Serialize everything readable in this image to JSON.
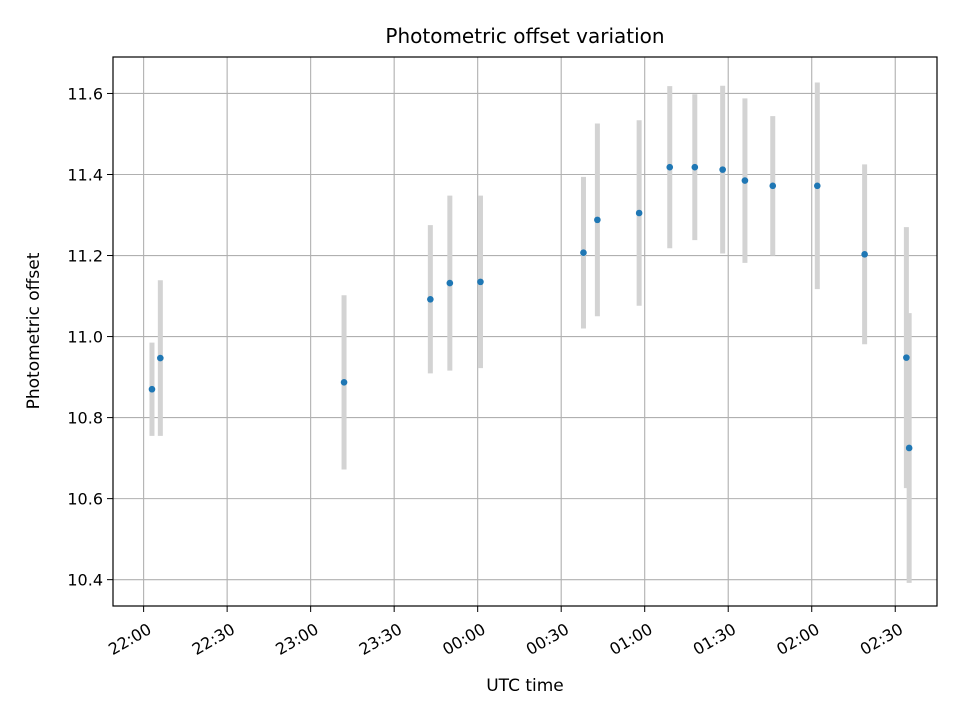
{
  "chart_data": {
    "type": "scatter",
    "title": "Photometric offset variation",
    "xlabel": "UTC time",
    "ylabel": "Photometric offset",
    "x_ticks": [
      "22:00",
      "22:30",
      "23:00",
      "23:30",
      "00:00",
      "00:30",
      "01:00",
      "01:30",
      "02:00",
      "02:30"
    ],
    "y_ticks": [
      "10.4",
      "10.6",
      "10.8",
      "11.0",
      "11.2",
      "11.4",
      "11.6"
    ],
    "x_range": [
      "21:49",
      "02:45"
    ],
    "ylim": [
      10.335,
      11.69
    ],
    "grid": true,
    "colors": {
      "point": "#1f77b4",
      "errorbar": "#d3d3d3"
    },
    "points": [
      {
        "x": "22:03",
        "y": 10.87,
        "err": 0.115
      },
      {
        "x": "22:06",
        "y": 10.947,
        "err": 0.192
      },
      {
        "x": "23:12",
        "y": 10.887,
        "err": 0.215
      },
      {
        "x": "23:43",
        "y": 11.092,
        "err": 0.183
      },
      {
        "x": "23:50",
        "y": 11.132,
        "err": 0.216
      },
      {
        "x": "00:01",
        "y": 11.135,
        "err": 0.213
      },
      {
        "x": "00:38",
        "y": 11.207,
        "err": 0.187
      },
      {
        "x": "00:43",
        "y": 11.288,
        "err": 0.238
      },
      {
        "x": "00:58",
        "y": 11.305,
        "err": 0.229
      },
      {
        "x": "01:09",
        "y": 11.418,
        "err": 0.2
      },
      {
        "x": "01:18",
        "y": 11.418,
        "err": 0.18
      },
      {
        "x": "01:28",
        "y": 11.412,
        "err": 0.207
      },
      {
        "x": "01:36",
        "y": 11.385,
        "err": 0.203
      },
      {
        "x": "01:46",
        "y": 11.372,
        "err": 0.172
      },
      {
        "x": "02:02",
        "y": 11.372,
        "err": 0.255
      },
      {
        "x": "02:19",
        "y": 11.203,
        "err": 0.222
      },
      {
        "x": "02:34",
        "y": 10.948,
        "err": 0.322
      },
      {
        "x": "02:35",
        "y": 10.725,
        "err": 0.333
      }
    ]
  }
}
